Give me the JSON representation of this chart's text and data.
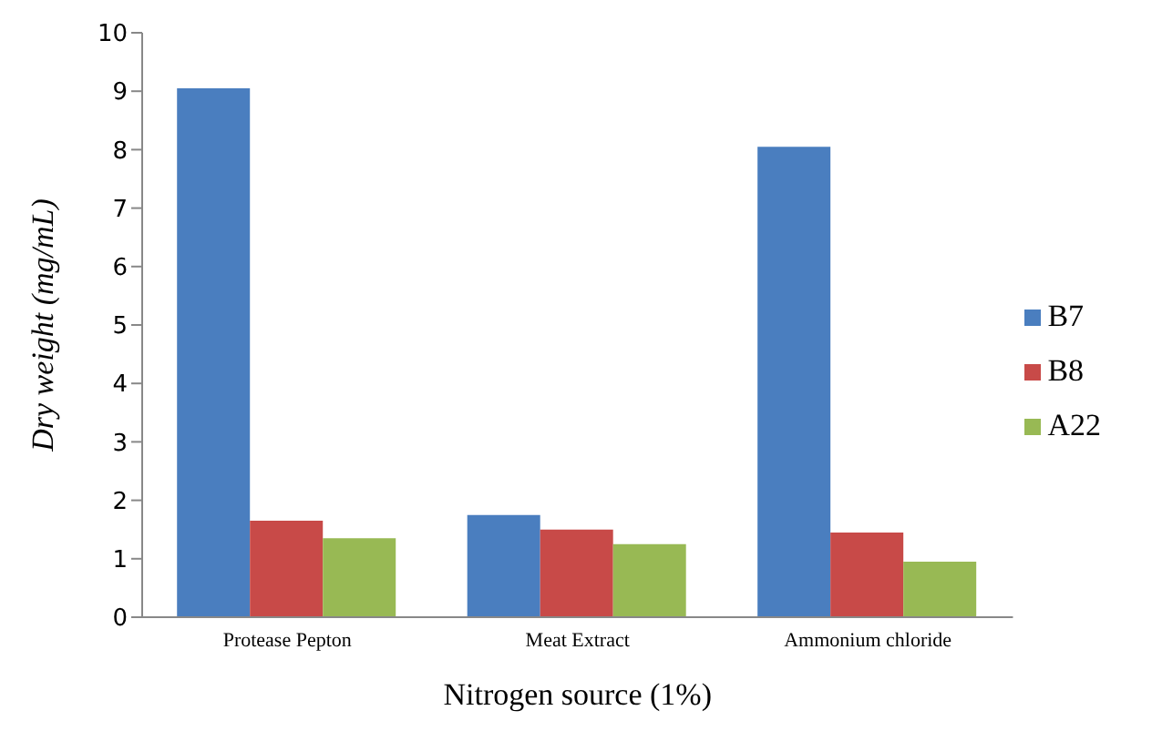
{
  "chart_data": {
    "type": "bar",
    "xlabel": "Nitrogen source (1%)",
    "ylabel": "Dry weight (mg/mL)",
    "categories": [
      "Protease Pepton",
      "Meat Extract",
      "Ammonium chloride"
    ],
    "series": [
      {
        "name": "B7",
        "color": "#4a7ebf",
        "values": [
          9.05,
          1.75,
          8.05
        ]
      },
      {
        "name": "B8",
        "color": "#c84a48",
        "values": [
          1.65,
          1.5,
          1.45
        ]
      },
      {
        "name": "A22",
        "color": "#98b954",
        "values": [
          1.35,
          1.25,
          0.95
        ]
      }
    ],
    "ylim": [
      0,
      10
    ],
    "yticks": [
      0,
      1,
      2,
      3,
      4,
      5,
      6,
      7,
      8,
      9,
      10
    ],
    "grid": false,
    "legend": "right"
  }
}
